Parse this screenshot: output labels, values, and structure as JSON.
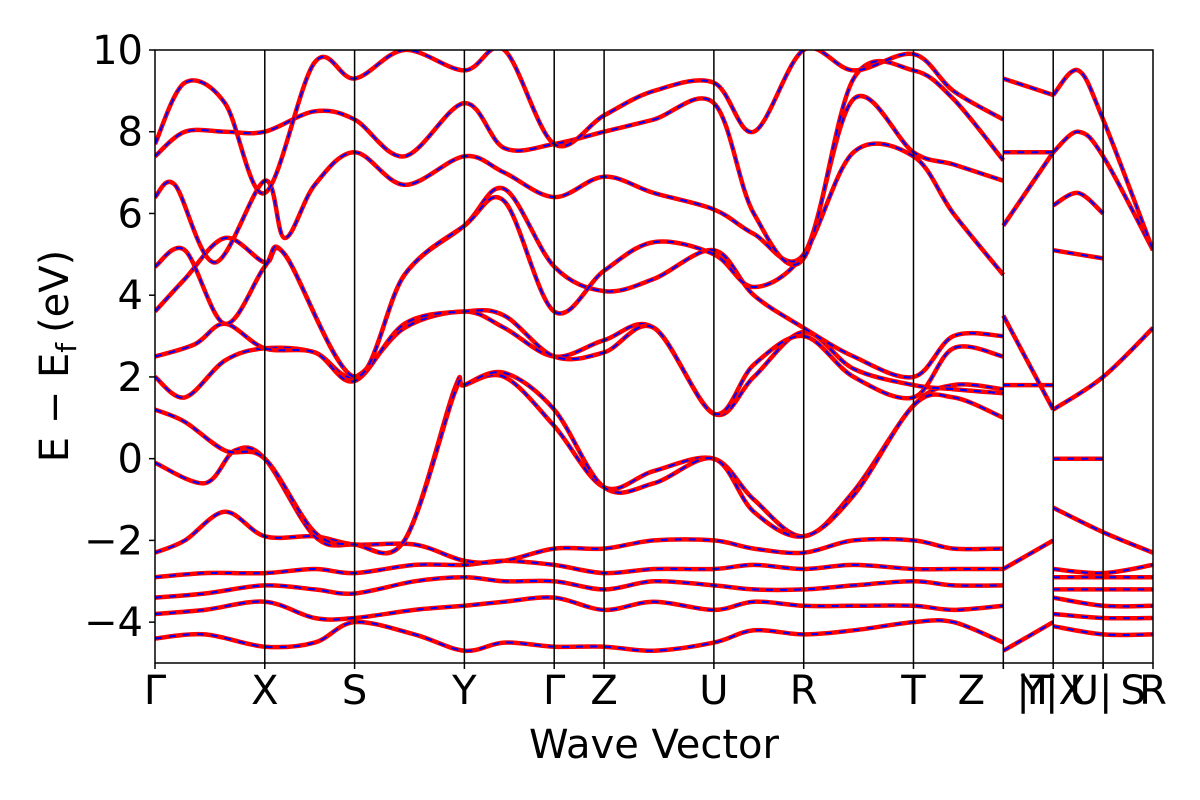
{
  "chart_data": {
    "type": "line",
    "xlabel": "Wave Vector",
    "ylabel": "E − E",
    "ylabel_sub": "f",
    "ylabel_unit": "(eV)",
    "ylim": [
      -5,
      10
    ],
    "yticks": [
      {
        "value": 10,
        "label": "10"
      },
      {
        "value": 8,
        "label": "8"
      },
      {
        "value": 6,
        "label": "6"
      },
      {
        "value": 4,
        "label": "4"
      },
      {
        "value": 2,
        "label": "2"
      },
      {
        "value": 0,
        "label": "0"
      },
      {
        "value": -2,
        "label": "−2"
      },
      {
        "value": -4,
        "label": "−4"
      }
    ],
    "xlim": [
      0,
      10
    ],
    "kpoints": [
      {
        "label": "Γ",
        "x": 0.0
      },
      {
        "label": "X",
        "x": 1.1
      },
      {
        "label": "S",
        "x": 2.0
      },
      {
        "label": "Y",
        "x": 3.1
      },
      {
        "label": "Γ",
        "x": 4.0
      },
      {
        "label": "Z",
        "x": 4.5
      },
      {
        "label": "U",
        "x": 5.6
      },
      {
        "label": "R",
        "x": 6.5
      },
      {
        "label": "T",
        "x": 7.6
      },
      {
        "label": "Z",
        "x": 8.5
      },
      {
        "label": "|T",
        "x": 8.5
      },
      {
        "label": "Y|X",
        "x": 9.0
      },
      {
        "label": "U|",
        "x": 9.5
      },
      {
        "label": "S",
        "x": 9.5
      },
      {
        "label": "R",
        "x": 10.0
      }
    ],
    "section_boundaries": [
      1.1,
      2.0,
      3.1,
      4.0,
      4.5,
      5.6,
      6.5,
      7.6,
      8.5,
      9.0,
      9.5
    ],
    "grid": false,
    "series_style": [
      {
        "role": "primary",
        "color": "#ff0000",
        "style": "solid"
      },
      {
        "role": "overlay",
        "color": "#0000ff",
        "style": "dashed"
      }
    ],
    "bands": [
      [
        [
          0,
          -4.4
        ],
        [
          0.5,
          -4.3
        ],
        [
          1.1,
          -4.6
        ],
        [
          1.6,
          -4.5
        ],
        [
          2.0,
          -4.0
        ],
        [
          2.6,
          -4.3
        ],
        [
          3.1,
          -4.7
        ],
        [
          3.5,
          -4.5
        ],
        [
          4.0,
          -4.6
        ],
        [
          4.5,
          -4.6
        ],
        [
          5.0,
          -4.7
        ],
        [
          5.6,
          -4.5
        ],
        [
          6.0,
          -4.2
        ],
        [
          6.5,
          -4.3
        ],
        [
          7.0,
          -4.2
        ],
        [
          7.6,
          -4.0
        ],
        [
          8.0,
          -4.0
        ],
        [
          8.5,
          -4.5
        ]
      ],
      [
        [
          0,
          -3.8
        ],
        [
          0.5,
          -3.7
        ],
        [
          1.1,
          -3.5
        ],
        [
          1.6,
          -3.9
        ],
        [
          2.0,
          -3.9
        ],
        [
          2.6,
          -3.7
        ],
        [
          3.1,
          -3.6
        ],
        [
          3.5,
          -3.5
        ],
        [
          4.0,
          -3.4
        ],
        [
          4.5,
          -3.7
        ],
        [
          5.0,
          -3.5
        ],
        [
          5.6,
          -3.7
        ],
        [
          6.0,
          -3.5
        ],
        [
          6.5,
          -3.6
        ],
        [
          7.0,
          -3.6
        ],
        [
          7.6,
          -3.6
        ],
        [
          8.0,
          -3.7
        ],
        [
          8.5,
          -3.6
        ]
      ],
      [
        [
          0,
          -3.4
        ],
        [
          0.5,
          -3.3
        ],
        [
          1.1,
          -3.1
        ],
        [
          1.6,
          -3.2
        ],
        [
          2.0,
          -3.3
        ],
        [
          2.6,
          -3.0
        ],
        [
          3.1,
          -2.9
        ],
        [
          3.5,
          -3.0
        ],
        [
          4.0,
          -3.0
        ],
        [
          4.5,
          -3.2
        ],
        [
          5.0,
          -3.0
        ],
        [
          5.6,
          -3.1
        ],
        [
          6.0,
          -3.2
        ],
        [
          6.5,
          -3.2
        ],
        [
          7.0,
          -3.1
        ],
        [
          7.6,
          -3.0
        ],
        [
          8.0,
          -3.1
        ],
        [
          8.5,
          -3.1
        ]
      ],
      [
        [
          0,
          -2.9
        ],
        [
          0.5,
          -2.8
        ],
        [
          1.1,
          -2.8
        ],
        [
          1.6,
          -2.7
        ],
        [
          2.0,
          -2.8
        ],
        [
          2.6,
          -2.6
        ],
        [
          3.1,
          -2.6
        ],
        [
          3.5,
          -2.5
        ],
        [
          4.0,
          -2.6
        ],
        [
          4.5,
          -2.8
        ],
        [
          5.0,
          -2.7
        ],
        [
          5.6,
          -2.7
        ],
        [
          6.0,
          -2.6
        ],
        [
          6.5,
          -2.7
        ],
        [
          7.0,
          -2.6
        ],
        [
          7.6,
          -2.7
        ],
        [
          8.0,
          -2.7
        ],
        [
          8.5,
          -2.7
        ]
      ],
      [
        [
          0,
          -2.3
        ],
        [
          0.3,
          -2.0
        ],
        [
          0.7,
          -1.3
        ],
        [
          1.1,
          -1.9
        ],
        [
          1.6,
          -1.9
        ],
        [
          2.0,
          -2.1
        ],
        [
          2.6,
          -2.1
        ],
        [
          3.1,
          -2.5
        ],
        [
          3.5,
          -2.5
        ],
        [
          4.0,
          -2.2
        ],
        [
          4.5,
          -2.2
        ],
        [
          5.0,
          -2.0
        ],
        [
          5.6,
          -2.0
        ],
        [
          6.0,
          -2.2
        ],
        [
          6.5,
          -2.3
        ],
        [
          7.0,
          -2.0
        ],
        [
          7.6,
          -2.0
        ],
        [
          8.0,
          -2.2
        ],
        [
          8.5,
          -2.2
        ]
      ],
      [
        [
          0,
          -0.1
        ],
        [
          0.5,
          -0.6
        ],
        [
          0.8,
          0.2
        ],
        [
          1.1,
          0.0
        ],
        [
          1.6,
          -1.9
        ],
        [
          2.0,
          -2.1
        ],
        [
          2.5,
          -2.0
        ],
        [
          3.0,
          1.7
        ],
        [
          3.1,
          1.8
        ],
        [
          3.5,
          2.0
        ],
        [
          4.0,
          0.8
        ],
        [
          4.5,
          -0.7
        ],
        [
          5.0,
          -0.3
        ],
        [
          5.6,
          0.0
        ],
        [
          6.0,
          -1.0
        ],
        [
          6.5,
          -1.9
        ],
        [
          7.0,
          -0.8
        ],
        [
          7.6,
          1.3
        ],
        [
          8.0,
          1.8
        ],
        [
          8.5,
          1.7
        ]
      ],
      [
        [
          0,
          1.2
        ],
        [
          0.3,
          0.9
        ],
        [
          0.7,
          0.2
        ],
        [
          1.1,
          0.0
        ],
        [
          1.6,
          -1.8
        ],
        [
          2.0,
          -2.1
        ],
        [
          2.5,
          -2.0
        ],
        [
          3.0,
          1.6
        ],
        [
          3.1,
          1.8
        ],
        [
          3.5,
          2.1
        ],
        [
          4.0,
          1.2
        ],
        [
          4.5,
          -0.7
        ],
        [
          5.0,
          -0.6
        ],
        [
          5.6,
          0.0
        ],
        [
          6.0,
          -1.3
        ],
        [
          6.5,
          -1.9
        ],
        [
          7.0,
          -0.9
        ],
        [
          7.6,
          1.3
        ],
        [
          8.0,
          1.5
        ],
        [
          8.5,
          1.0
        ]
      ],
      [
        [
          0,
          2.0
        ],
        [
          0.3,
          1.5
        ],
        [
          0.7,
          2.4
        ],
        [
          1.1,
          2.7
        ],
        [
          1.6,
          2.6
        ],
        [
          2.0,
          2.0
        ],
        [
          2.5,
          3.2
        ],
        [
          3.1,
          3.6
        ],
        [
          3.5,
          3.2
        ],
        [
          4.0,
          2.5
        ],
        [
          4.5,
          2.9
        ],
        [
          5.0,
          3.2
        ],
        [
          5.6,
          1.1
        ],
        [
          6.0,
          2.0
        ],
        [
          6.5,
          3.1
        ],
        [
          7.0,
          2.2
        ],
        [
          7.6,
          1.8
        ],
        [
          8.0,
          1.7
        ],
        [
          8.5,
          1.6
        ]
      ],
      [
        [
          0,
          2.5
        ],
        [
          0.4,
          2.8
        ],
        [
          0.7,
          3.3
        ],
        [
          1.1,
          2.7
        ],
        [
          1.6,
          2.6
        ],
        [
          2.0,
          1.9
        ],
        [
          2.5,
          3.3
        ],
        [
          3.1,
          3.6
        ],
        [
          3.5,
          3.5
        ],
        [
          4.0,
          2.5
        ],
        [
          4.5,
          2.6
        ],
        [
          5.0,
          3.2
        ],
        [
          5.6,
          1.1
        ],
        [
          6.0,
          2.3
        ],
        [
          6.5,
          3.0
        ],
        [
          7.0,
          2.0
        ],
        [
          7.6,
          1.5
        ],
        [
          8.0,
          2.7
        ],
        [
          8.5,
          2.5
        ]
      ],
      [
        [
          0,
          3.6
        ],
        [
          0.3,
          4.4
        ],
        [
          0.7,
          5.4
        ],
        [
          1.1,
          4.8
        ],
        [
          1.3,
          5.0
        ],
        [
          2.0,
          2.0
        ],
        [
          2.5,
          4.5
        ],
        [
          3.1,
          5.7
        ],
        [
          3.5,
          6.6
        ],
        [
          4.0,
          4.7
        ],
        [
          4.5,
          4.1
        ],
        [
          5.0,
          4.4
        ],
        [
          5.6,
          5.1
        ],
        [
          6.0,
          4.0
        ],
        [
          6.5,
          3.2
        ],
        [
          7.0,
          2.5
        ],
        [
          7.6,
          2.0
        ],
        [
          8.0,
          3.0
        ],
        [
          8.5,
          3.0
        ]
      ],
      [
        [
          0,
          4.7
        ],
        [
          0.3,
          5.1
        ],
        [
          0.7,
          3.3
        ],
        [
          1.1,
          4.7
        ],
        [
          1.3,
          5.0
        ],
        [
          2.0,
          2.0
        ],
        [
          2.5,
          4.5
        ],
        [
          3.1,
          5.7
        ],
        [
          3.5,
          6.3
        ],
        [
          4.0,
          3.6
        ],
        [
          4.5,
          4.6
        ],
        [
          5.0,
          5.3
        ],
        [
          5.6,
          5.0
        ],
        [
          6.0,
          4.2
        ],
        [
          6.5,
          5.0
        ],
        [
          7.0,
          7.5
        ],
        [
          7.6,
          7.4
        ],
        [
          8.0,
          6.0
        ],
        [
          8.5,
          4.5
        ]
      ],
      [
        [
          0,
          6.4
        ],
        [
          0.2,
          6.7
        ],
        [
          0.6,
          4.8
        ],
        [
          1.1,
          6.8
        ],
        [
          1.3,
          5.4
        ],
        [
          1.6,
          6.7
        ],
        [
          2.0,
          7.5
        ],
        [
          2.5,
          6.7
        ],
        [
          3.1,
          7.4
        ],
        [
          3.5,
          7.0
        ],
        [
          4.0,
          6.4
        ],
        [
          4.5,
          6.9
        ],
        [
          5.0,
          6.5
        ],
        [
          5.6,
          6.1
        ],
        [
          6.0,
          5.5
        ],
        [
          6.5,
          5.0
        ],
        [
          7.0,
          8.8
        ],
        [
          7.6,
          7.5
        ],
        [
          8.0,
          7.2
        ],
        [
          8.5,
          6.8
        ]
      ],
      [
        [
          0,
          7.4
        ],
        [
          0.3,
          8.0
        ],
        [
          0.7,
          8.0
        ],
        [
          1.1,
          8.0
        ],
        [
          1.6,
          8.5
        ],
        [
          2.0,
          8.3
        ],
        [
          2.5,
          7.4
        ],
        [
          3.1,
          8.7
        ],
        [
          3.5,
          7.6
        ],
        [
          4.0,
          7.7
        ],
        [
          4.5,
          8.0
        ],
        [
          5.0,
          8.3
        ],
        [
          5.6,
          8.7
        ],
        [
          6.0,
          6.0
        ],
        [
          6.5,
          4.9
        ],
        [
          7.0,
          9.3
        ],
        [
          7.6,
          9.5
        ],
        [
          8.0,
          8.8
        ],
        [
          8.5,
          7.3
        ]
      ],
      [
        [
          0,
          7.7
        ],
        [
          0.3,
          9.2
        ],
        [
          0.7,
          8.7
        ],
        [
          1.1,
          6.5
        ],
        [
          1.6,
          9.7
        ],
        [
          2.0,
          9.3
        ],
        [
          2.5,
          10.0
        ],
        [
          3.1,
          9.5
        ],
        [
          3.5,
          10.0
        ],
        [
          4.0,
          7.7
        ],
        [
          4.5,
          8.4
        ],
        [
          5.0,
          9.0
        ],
        [
          5.6,
          9.2
        ],
        [
          6.0,
          8.0
        ],
        [
          6.5,
          10.0
        ],
        [
          7.0,
          9.5
        ],
        [
          7.6,
          9.9
        ],
        [
          8.0,
          9.0
        ],
        [
          8.5,
          8.3
        ]
      ],
      [
        [
          9.0,
          -4.1
        ],
        [
          9.5,
          -4.3
        ],
        [
          10.0,
          -4.3
        ]
      ],
      [
        [
          9.0,
          -3.8
        ],
        [
          9.5,
          -3.9
        ],
        [
          10.0,
          -3.9
        ]
      ],
      [
        [
          9.0,
          -3.4
        ],
        [
          9.5,
          -3.6
        ],
        [
          10.0,
          -3.6
        ]
      ],
      [
        [
          9.0,
          -3.2
        ],
        [
          9.5,
          -3.2
        ],
        [
          10.0,
          -3.2
        ]
      ],
      [
        [
          9.0,
          -2.9
        ],
        [
          9.5,
          -2.9
        ],
        [
          10.0,
          -2.9
        ]
      ],
      [
        [
          9.0,
          -2.7
        ],
        [
          9.5,
          -2.8
        ],
        [
          10.0,
          -2.6
        ]
      ],
      [
        [
          9.0,
          -1.2
        ],
        [
          9.5,
          -1.8
        ],
        [
          10.0,
          -2.3
        ]
      ],
      [
        [
          9.0,
          0.0
        ],
        [
          9.5,
          0.0
        ]
      ],
      [
        [
          9.0,
          1.2
        ],
        [
          9.5,
          2.0
        ],
        [
          10.0,
          3.2
        ]
      ],
      [
        [
          9.0,
          5.1
        ],
        [
          9.5,
          4.9
        ]
      ],
      [
        [
          9.0,
          6.2
        ],
        [
          9.25,
          6.5
        ],
        [
          9.5,
          6.0
        ]
      ],
      [
        [
          9.0,
          7.5
        ],
        [
          9.25,
          8.0
        ],
        [
          9.5,
          7.4
        ],
        [
          10.0,
          5.1
        ]
      ],
      [
        [
          9.0,
          8.9
        ],
        [
          9.25,
          9.5
        ],
        [
          9.5,
          8.3
        ],
        [
          10.0,
          5.1
        ]
      ],
      [
        [
          8.5,
          -4.7
        ],
        [
          9.0,
          -4.0
        ]
      ],
      [
        [
          8.5,
          -2.7
        ],
        [
          9.0,
          -2.0
        ]
      ],
      [
        [
          8.5,
          1.8
        ],
        [
          9.0,
          1.8
        ]
      ],
      [
        [
          8.5,
          3.5
        ],
        [
          9.0,
          1.2
        ]
      ],
      [
        [
          8.5,
          5.7
        ],
        [
          9.0,
          7.5
        ]
      ],
      [
        [
          8.5,
          7.5
        ],
        [
          9.0,
          7.5
        ]
      ],
      [
        [
          8.5,
          9.3
        ],
        [
          9.0,
          8.9
        ]
      ]
    ]
  }
}
